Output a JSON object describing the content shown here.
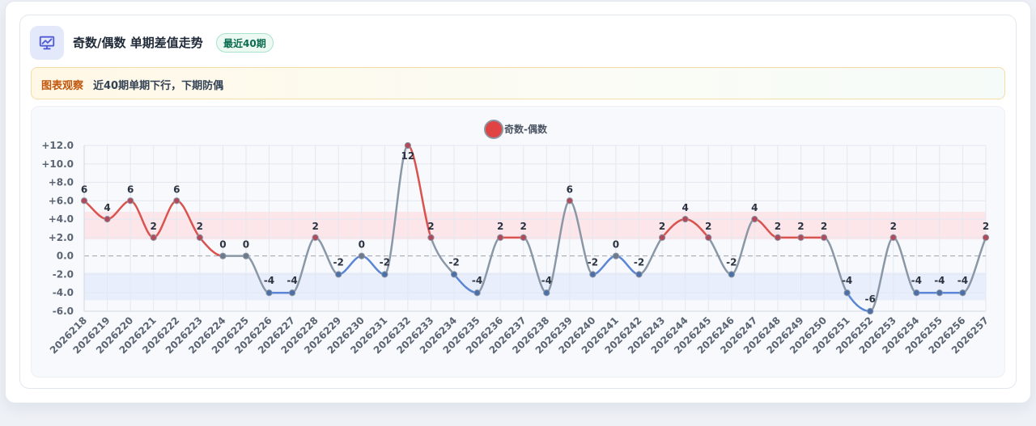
{
  "header": {
    "title": "奇数/偶数 单期差值走势",
    "badge": "最近40期"
  },
  "observation": {
    "label": "图表观察",
    "text": "近40期单期下行，下期防偶"
  },
  "colors": {
    "up": "#d9534f",
    "down": "#5b86d6",
    "flat": "#8a97a6",
    "upper_band": "#fde3e6",
    "lower_band": "#e5ecfb",
    "legend_dot": "#e04343"
  },
  "icons": {
    "header": "presentation-chart-icon"
  },
  "chart_data": {
    "type": "line",
    "legend": [
      "奇数-偶数"
    ],
    "categories": [
      "2026218",
      "2026219",
      "2026220",
      "2026221",
      "2026222",
      "2026223",
      "2026224",
      "2026225",
      "2026226",
      "2026227",
      "2026228",
      "2026229",
      "2026230",
      "2026231",
      "2026232",
      "2026233",
      "2026234",
      "2026235",
      "2026236",
      "2026237",
      "2026238",
      "2026239",
      "2026240",
      "2026241",
      "2026242",
      "2026243",
      "2026244",
      "2026245",
      "2026246",
      "2026247",
      "2026248",
      "2026249",
      "2026250",
      "2026251",
      "2026252",
      "2026253",
      "2026254",
      "2026255",
      "2026256",
      "2026257"
    ],
    "series": [
      {
        "name": "奇数-偶数",
        "values": [
          6,
          4,
          6,
          2,
          6,
          2,
          0,
          0,
          -4,
          -4,
          2,
          -2,
          0,
          -2,
          12,
          2,
          -2,
          -4,
          2,
          2,
          -4,
          6,
          -2,
          0,
          -2,
          2,
          4,
          2,
          -2,
          4,
          2,
          2,
          2,
          -4,
          -6,
          2,
          -4,
          -4,
          -4,
          2
        ]
      }
    ],
    "y_ticks": [
      "+12.0",
      "+10.0",
      "+8.0",
      "+6.0",
      "+4.0",
      "+2.0",
      "0.0",
      "-2.0",
      "-4.0",
      "-6.0"
    ],
    "ylim": [
      -6,
      12
    ],
    "bands": [
      {
        "name": "upper",
        "range": [
          1.8,
          4.8
        ]
      },
      {
        "name": "lower",
        "range": [
          -4.8,
          -1.8
        ]
      }
    ],
    "zero_line": "dashed",
    "grid": true,
    "legend_position": "top-center"
  }
}
